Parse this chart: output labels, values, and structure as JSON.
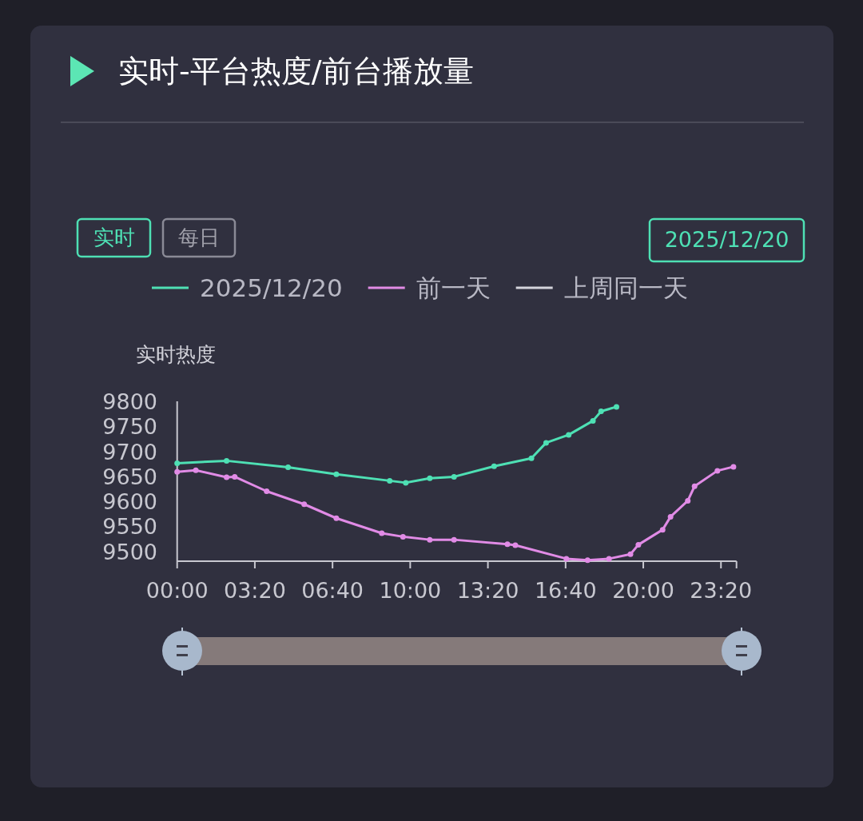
{
  "chart_data": {
    "type": "line",
    "title": "实时-平台热度/前台播放量",
    "ylabel": "实时热度",
    "annotations": [
      "实时",
      "每日",
      "2025/12/20"
    ],
    "legend": "top",
    "grid": false,
    "marker": "circle",
    "line_style": "solid",
    "xlim": [
      0,
      24
    ],
    "ylim": [
      9480,
      9800
    ],
    "xticks": [
      {
        "value": 0,
        "label": "00:00"
      },
      {
        "value": 3.3333,
        "label": "03:20"
      },
      {
        "value": 6.6667,
        "label": "06:40"
      },
      {
        "value": 10,
        "label": "10:00"
      },
      {
        "value": 13.3333,
        "label": "13:20"
      },
      {
        "value": 16.6667,
        "label": "16:40"
      },
      {
        "value": 20,
        "label": "20:00"
      },
      {
        "value": 23.3333,
        "label": "23:20"
      }
    ],
    "yticks": [
      9500,
      9550,
      9600,
      9650,
      9700,
      9750,
      9800
    ],
    "series": [
      {
        "name": "2025/12/20",
        "color": "#4ee0b4",
        "x": [
          0,
          2.12,
          4.76,
          6.83,
          9.12,
          9.81,
          10.84,
          11.88,
          13.6,
          15.2,
          15.83,
          16.8,
          17.84,
          18.19,
          18.85
        ],
        "values": [
          9676,
          9681,
          9668,
          9654,
          9641,
          9637,
          9646,
          9649,
          9670,
          9686,
          9717,
          9733,
          9761,
          9780,
          9789
        ]
      },
      {
        "name": "前一天",
        "color": "#e18be6",
        "x": [
          0,
          0.8,
          2.12,
          2.47,
          3.84,
          5.45,
          6.83,
          8.78,
          9.69,
          10.84,
          11.88,
          14.17,
          14.51,
          16.7,
          17.61,
          18.53,
          19.45,
          19.79,
          20.83,
          21.17,
          21.91,
          22.2,
          23.18,
          23.87
        ],
        "values": [
          9659,
          9662,
          9648,
          9649,
          9620,
          9594,
          9566,
          9536,
          9529,
          9523,
          9523,
          9514,
          9512,
          9485,
          9482,
          9485,
          9494,
          9513,
          9543,
          9569,
          9601,
          9630,
          9661,
          9669
        ]
      },
      {
        "name": "上周同一天",
        "color": "#d4d4dc"
      }
    ]
  }
}
